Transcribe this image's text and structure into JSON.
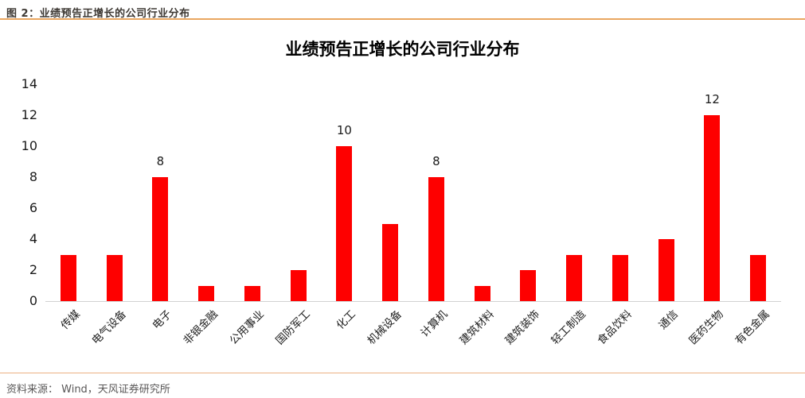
{
  "figure": {
    "caption": "图 2：业绩预告正增长的公司行业分布",
    "source": "资料来源： Wind，天风证券研究所"
  },
  "colors": {
    "bar_red": "#fe0000",
    "accent_line": "#e9a660",
    "footer_line": "#ecb183",
    "header_text": "#3d3833",
    "footer_text": "#595757",
    "axis_line": "#d2d2d2",
    "tick_text": "#1a1a1a"
  },
  "chart_data": {
    "type": "bar",
    "title": "业绩预告正增长的公司行业分布",
    "categories": [
      "传媒",
      "电气设备",
      "电子",
      "非银金融",
      "公用事业",
      "国防军工",
      "化工",
      "机械设备",
      "计算机",
      "建筑材料",
      "建筑装饰",
      "轻工制造",
      "食品饮料",
      "通信",
      "医药生物",
      "有色金属"
    ],
    "values": [
      3,
      3,
      8,
      1,
      1,
      2,
      10,
      5,
      8,
      1,
      2,
      3,
      3,
      4,
      12,
      3
    ],
    "labeled_indices": [
      2,
      6,
      8,
      14
    ],
    "xlabel": "",
    "ylabel": "",
    "ylim": [
      0,
      14
    ],
    "yticks": [
      0,
      2,
      4,
      6,
      8,
      10,
      12,
      14
    ],
    "grid": false,
    "legend": null,
    "bar_color": "#fe0000"
  }
}
